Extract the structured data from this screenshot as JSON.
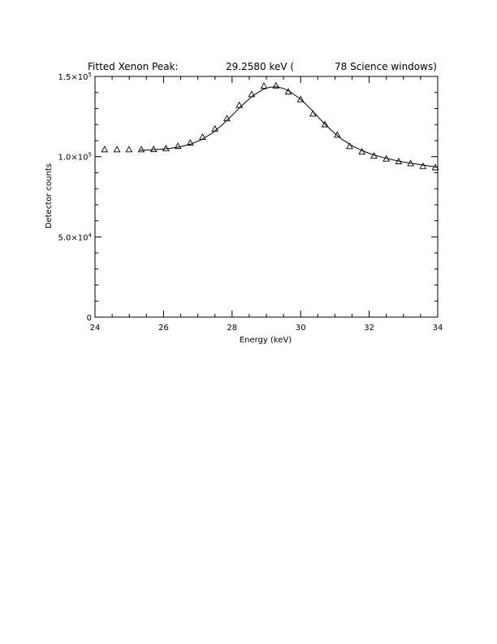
{
  "chart_data": {
    "type": "scatter",
    "title": {
      "label": "Fitted Xenon Peak:",
      "energy": "29.2580 keV (",
      "windows": "78 Science windows)"
    },
    "xlabel": "Energy (keV)",
    "ylabel": "Detector counts",
    "xlim": [
      24,
      34
    ],
    "ylim": [
      0,
      150000
    ],
    "x_ticks": [
      {
        "value": 24,
        "label": "24"
      },
      {
        "value": 26,
        "label": "26"
      },
      {
        "value": 28,
        "label": "28"
      },
      {
        "value": 30,
        "label": "30"
      },
      {
        "value": 32,
        "label": "32"
      },
      {
        "value": 34,
        "label": "34"
      }
    ],
    "y_ticks": [
      {
        "value": 0,
        "mantissa": "0",
        "exponent": ""
      },
      {
        "value": 50000,
        "mantissa": "5.0×10",
        "exponent": "4"
      },
      {
        "value": 100000,
        "mantissa": "1.0×10",
        "exponent": "5"
      },
      {
        "value": 150000,
        "mantissa": "1.5×10",
        "exponent": "5"
      }
    ],
    "series": [
      {
        "marker": "triangle",
        "x": [
          24.28,
          24.64,
          24.99,
          25.35,
          25.71,
          26.07,
          26.42,
          26.78,
          27.14,
          27.5,
          27.85,
          28.21,
          28.57,
          28.93,
          29.28,
          29.64,
          30.0,
          30.36,
          30.71,
          31.07,
          31.43,
          31.79,
          32.14,
          32.5,
          32.86,
          33.21,
          33.57,
          33.93
        ],
        "y": [
          104300,
          104300,
          104300,
          104300,
          104400,
          104900,
          106400,
          108500,
          112100,
          117200,
          123600,
          132000,
          138700,
          143900,
          144100,
          140300,
          135500,
          126500,
          119900,
          113400,
          106300,
          102900,
          100400,
          98500,
          96900,
          95600,
          93900,
          93100
        ]
      },
      {
        "style": "line",
        "x": [
          25.3,
          25.6,
          25.9,
          26.2,
          26.5,
          26.8,
          27.1,
          27.4,
          27.7,
          28.0,
          28.3,
          28.6,
          28.9,
          29.1,
          29.3,
          29.5,
          29.7,
          30.0,
          30.3,
          30.6,
          30.9,
          31.2,
          31.5,
          31.8,
          32.1,
          32.4,
          32.7,
          33.0,
          33.3,
          33.6,
          34.0
        ],
        "y": [
          104000,
          104200,
          104600,
          105200,
          106200,
          107900,
          110500,
          114400,
          119600,
          125800,
          132200,
          137900,
          141900,
          143300,
          143500,
          142500,
          140400,
          135800,
          129600,
          122700,
          116300,
          110900,
          106800,
          103700,
          101300,
          99500,
          98000,
          96700,
          95600,
          94600,
          93400
        ]
      }
    ]
  }
}
